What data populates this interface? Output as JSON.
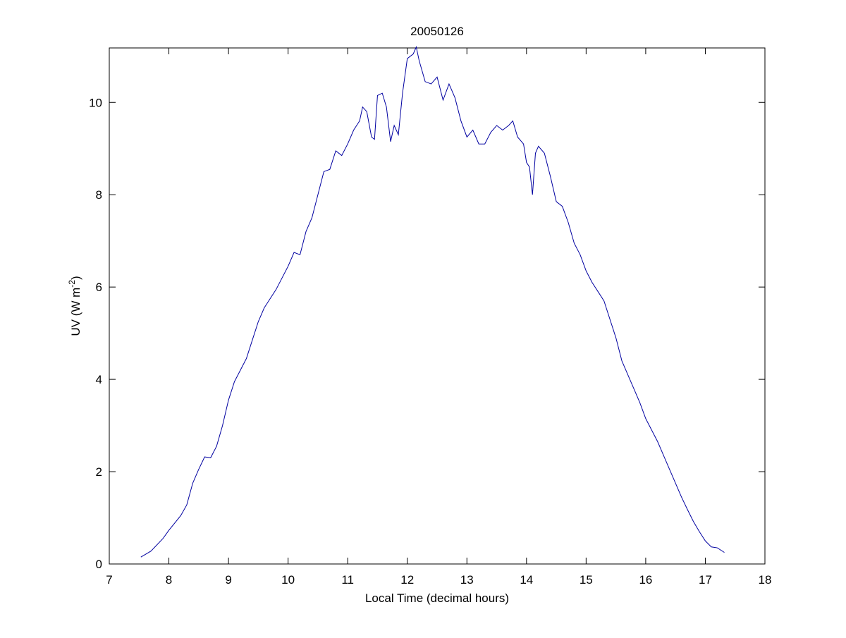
{
  "chart_data": {
    "type": "line",
    "title": "20050126",
    "xlabel": "Local Time (decimal hours)",
    "ylabel": "UV (W m",
    "ylabel_superscript": "-2",
    "ylabel_end": ")",
    "xlim": [
      7,
      18
    ],
    "xticks": [
      7,
      8,
      9,
      10,
      11,
      12,
      13,
      14,
      15,
      16,
      17,
      18
    ],
    "ylim": [
      0,
      11.18
    ],
    "yticks": [
      0,
      2,
      4,
      6,
      8,
      10
    ],
    "grid": false,
    "series": [
      {
        "color": "#0000a0",
        "x": [
          7.53,
          7.7,
          7.9,
          8.0,
          8.2,
          8.3,
          8.4,
          8.5,
          8.6,
          8.7,
          8.8,
          8.9,
          9.0,
          9.1,
          9.2,
          9.3,
          9.4,
          9.5,
          9.6,
          9.7,
          9.8,
          9.9,
          10.0,
          10.1,
          10.2,
          10.3,
          10.4,
          10.5,
          10.6,
          10.7,
          10.8,
          10.9,
          11.0,
          11.1,
          11.2,
          11.25,
          11.32,
          11.4,
          11.45,
          11.5,
          11.58,
          11.65,
          11.72,
          11.78,
          11.85,
          11.92,
          12.0,
          12.1,
          12.15,
          12.2,
          12.3,
          12.4,
          12.5,
          12.6,
          12.7,
          12.8,
          12.9,
          13.0,
          13.1,
          13.2,
          13.3,
          13.4,
          13.5,
          13.6,
          13.7,
          13.77,
          13.85,
          13.95,
          14.0,
          14.05,
          14.1,
          14.15,
          14.2,
          14.3,
          14.4,
          14.5,
          14.6,
          14.7,
          14.8,
          14.9,
          15.0,
          15.1,
          15.2,
          15.3,
          15.4,
          15.5,
          15.6,
          15.7,
          15.8,
          15.9,
          16.0,
          16.1,
          16.2,
          16.3,
          16.4,
          16.5,
          16.6,
          16.7,
          16.8,
          16.9,
          17.0,
          17.1,
          17.2,
          17.32
        ],
        "values": [
          0.15,
          0.28,
          0.55,
          0.73,
          1.05,
          1.28,
          1.75,
          2.05,
          2.32,
          2.3,
          2.55,
          3.0,
          3.55,
          3.95,
          4.2,
          4.45,
          4.85,
          5.25,
          5.55,
          5.75,
          5.95,
          6.2,
          6.45,
          6.75,
          6.7,
          7.2,
          7.5,
          8.0,
          8.5,
          8.55,
          8.95,
          8.85,
          9.1,
          9.4,
          9.6,
          9.9,
          9.8,
          9.25,
          9.2,
          10.15,
          10.2,
          9.9,
          9.15,
          9.5,
          9.3,
          10.2,
          10.95,
          11.05,
          11.2,
          10.9,
          10.45,
          10.4,
          10.55,
          10.05,
          10.4,
          10.1,
          9.6,
          9.25,
          9.4,
          9.1,
          9.1,
          9.35,
          9.5,
          9.4,
          9.5,
          9.6,
          9.25,
          9.1,
          8.7,
          8.6,
          8.0,
          8.9,
          9.05,
          8.9,
          8.4,
          7.85,
          7.75,
          7.4,
          6.95,
          6.7,
          6.35,
          6.1,
          5.9,
          5.7,
          5.3,
          4.9,
          4.4,
          4.1,
          3.8,
          3.5,
          3.15,
          2.9,
          2.65,
          2.35,
          2.05,
          1.75,
          1.45,
          1.18,
          0.92,
          0.7,
          0.5,
          0.37,
          0.35,
          0.25
        ]
      }
    ]
  }
}
